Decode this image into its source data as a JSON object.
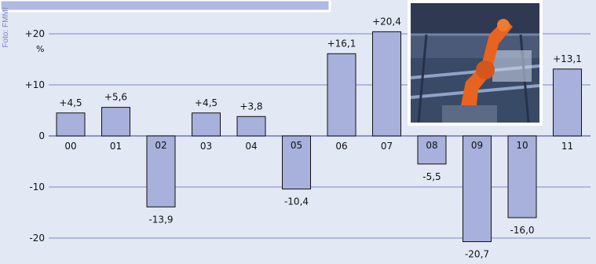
{
  "credit": "Foto: FMMI",
  "chart_data": {
    "type": "bar",
    "categories": [
      "00",
      "01",
      "02",
      "03",
      "04",
      "05",
      "06",
      "07",
      "08",
      "09",
      "10",
      "11"
    ],
    "values": [
      4.5,
      5.6,
      -13.9,
      4.5,
      3.8,
      -10.4,
      16.1,
      20.4,
      -5.5,
      -20.7,
      -16.0,
      13.1
    ],
    "value_labels": [
      "+4,5",
      "+5,6",
      "-13,9",
      "+4,5",
      "+3,8",
      "-10,4",
      "+16,1",
      "+20,4",
      "-5,5",
      "-20,7",
      "-16,0",
      "+13,1"
    ],
    "y_ticks": [
      20,
      10,
      0,
      -10,
      -20
    ],
    "y_tick_labels": [
      "+20",
      "+10",
      "0",
      "-10",
      "-20"
    ],
    "y_unit": "%",
    "ylim": [
      -22,
      25
    ],
    "grid": true,
    "colors": {
      "bar": "#a7b1dc",
      "bar_stroke": "#111111",
      "grid": "#7d89c6",
      "background": "#e2e8f4"
    }
  }
}
